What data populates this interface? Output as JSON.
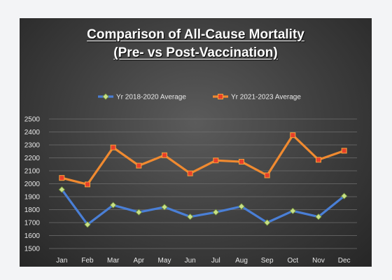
{
  "chart_data": {
    "type": "line",
    "title_line1": "Comparison of All-Cause Mortality",
    "title_line2": "(Pre- vs Post-Vaccination)",
    "categories": [
      "Jan",
      "Feb",
      "Mar",
      "Apr",
      "May",
      "Jun",
      "Jul",
      "Aug",
      "Sep",
      "Oct",
      "Nov",
      "Dec"
    ],
    "series": [
      {
        "name": "Yr 2018-2020 Average",
        "color": "#4a7fd6",
        "marker": "diamond",
        "marker_color": "#c8e08a",
        "values": [
          1955,
          1685,
          1835,
          1780,
          1820,
          1745,
          1780,
          1825,
          1700,
          1790,
          1745,
          1905
        ]
      },
      {
        "name": "Yr 2021-2023 Average",
        "color": "#f08a30",
        "marker": "square",
        "marker_color": "#e8402a",
        "values": [
          2045,
          1995,
          2280,
          2140,
          2220,
          2080,
          2180,
          2170,
          2065,
          2375,
          2185,
          2255
        ]
      }
    ],
    "ylim": [
      1500,
      2500
    ],
    "yticks": [
      1500,
      1600,
      1700,
      1800,
      1900,
      2000,
      2100,
      2200,
      2300,
      2400,
      2500
    ],
    "grid": true,
    "legend_position": "top"
  }
}
